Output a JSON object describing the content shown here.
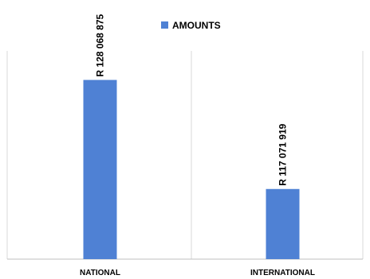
{
  "chart_data": {
    "type": "bar",
    "categories": [
      "NATIONAL",
      "INTERNATIONAL"
    ],
    "series": [
      {
        "name": "AMOUNTS",
        "values": [
          128068875,
          117071919
        ],
        "data_labels": [
          "R 128 068 875",
          "R 117 071 919"
        ],
        "color": "#4F81D4"
      }
    ],
    "title": "",
    "xlabel": "",
    "ylabel": "",
    "ylim": [
      110000000,
      131000000
    ],
    "grid": false,
    "legend": "top-center"
  }
}
